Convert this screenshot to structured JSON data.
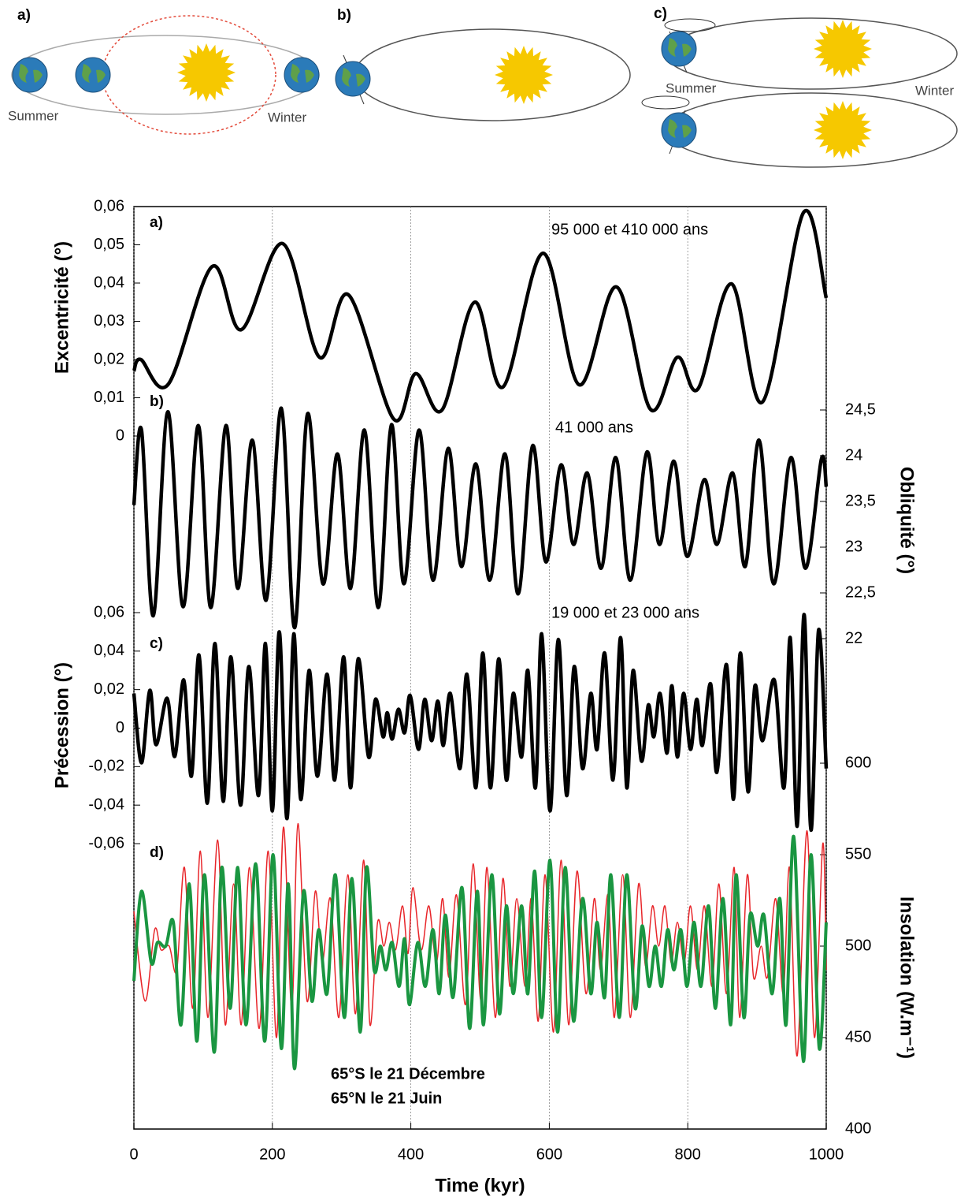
{
  "diagram": {
    "panels": [
      {
        "label": "a)",
        "summer": "Summer",
        "winter": "Winter"
      },
      {
        "label": "b)"
      },
      {
        "label": "c)",
        "summer": "Summer",
        "winter": "Winter"
      }
    ]
  },
  "chart_data": [
    {
      "type": "line",
      "panel_label": "a)",
      "annotation": "95 000 et 410 000 ans",
      "y_label": "Excentricité (°)",
      "y_axis_side": "left",
      "xlim": [
        0,
        1000
      ],
      "ylim": [
        0,
        0.06
      ],
      "yticks": [
        0,
        {
          "value": 0.01,
          "label": "0,01"
        },
        {
          "value": 0.02,
          "label": "0,02"
        },
        {
          "value": 0.03,
          "label": "0,03"
        },
        {
          "value": 0.04,
          "label": "0,04"
        },
        {
          "value": 0.05,
          "label": "0,05"
        },
        {
          "value": 0.06,
          "label": "0,06"
        }
      ],
      "series": [
        {
          "color": "#000000",
          "x": [
            0,
            10,
            50,
            113,
            155,
            215,
            268,
            310,
            375,
            407,
            445,
            492,
            533,
            591,
            643,
            697,
            746,
            785,
            815,
            863,
            908,
            967,
            1000
          ],
          "values": [
            0.017,
            0.02,
            0.0136,
            0.0443,
            0.0278,
            0.0503,
            0.0206,
            0.0369,
            0.0045,
            0.0163,
            0.0068,
            0.035,
            0.0128,
            0.0478,
            0.0134,
            0.039,
            0.007,
            0.0206,
            0.0124,
            0.0398,
            0.0089,
            0.0584,
            0.0361
          ]
        }
      ]
    },
    {
      "type": "line",
      "panel_label": "b)",
      "annotation": "41 000 ans",
      "y_label": "Obliquité (°)",
      "y_axis_side": "right",
      "xlim": [
        0,
        1000
      ],
      "ylim": [
        22,
        24.5
      ],
      "yticks": [
        22,
        {
          "value": 22.5,
          "label": "22,5"
        },
        23,
        {
          "value": 23.5,
          "label": "23,5"
        },
        24,
        {
          "value": 24.5,
          "label": "24,5"
        }
      ],
      "series": [
        {
          "color": "#000000",
          "x": [
            0,
            11,
            28,
            49,
            71,
            93,
            111,
            133,
            150,
            171,
            191,
            213,
            232,
            251,
            273,
            294,
            313,
            333,
            353,
            372,
            390,
            412,
            432,
            454,
            473,
            494,
            514,
            536,
            555,
            576,
            595,
            617,
            635,
            655,
            675,
            696,
            717,
            741,
            759,
            780,
            799,
            824,
            842,
            865,
            883,
            903,
            924,
            949,
            970,
            993,
            1000
          ],
          "values": [
            23.46,
            24.28,
            22.25,
            24.48,
            22.35,
            24.33,
            22.34,
            24.33,
            22.55,
            24.17,
            22.42,
            24.52,
            22.12,
            24.46,
            22.6,
            24.02,
            22.55,
            24.28,
            22.34,
            24.34,
            22.6,
            24.28,
            22.64,
            24.08,
            22.79,
            23.91,
            22.64,
            24.02,
            22.49,
            24.11,
            22.84,
            23.9,
            23.03,
            23.81,
            22.77,
            23.98,
            22.64,
            24.04,
            23.03,
            23.94,
            22.9,
            23.74,
            23.03,
            23.81,
            22.79,
            24.17,
            22.6,
            23.98,
            22.77,
            23.96,
            23.66
          ]
        }
      ]
    },
    {
      "type": "line",
      "panel_label": "c)",
      "annotation": "19 000 et 23 000 ans",
      "y_label": "Précession (°)",
      "y_axis_side": "left",
      "xlim": [
        0,
        1000
      ],
      "ylim": [
        -0.06,
        0.06
      ],
      "yticks": [
        {
          "value": -0.06,
          "label": "-0,06"
        },
        {
          "value": -0.04,
          "label": "-0,04"
        },
        {
          "value": -0.02,
          "label": "-0,02"
        },
        0,
        {
          "value": 0.02,
          "label": "0,02"
        },
        {
          "value": 0.04,
          "label": "0,04"
        },
        {
          "value": 0.06,
          "label": "0,06"
        }
      ],
      "series": [
        {
          "color": "#000000",
          "x": [
            0,
            11,
            23,
            32,
            48,
            59,
            72,
            83,
            94,
            106,
            117,
            129,
            140,
            154,
            166,
            180,
            190,
            200,
            210,
            221,
            231,
            241,
            253,
            265,
            279,
            290,
            303,
            313,
            324,
            339,
            349,
            360,
            366,
            373,
            382,
            391,
            399,
            411,
            420,
            430,
            439,
            447,
            457,
            471,
            481,
            494,
            504,
            515,
            527,
            538,
            548,
            560,
            569,
            580,
            589,
            601,
            613,
            625,
            636,
            648,
            660,
            669,
            680,
            692,
            703,
            712,
            721,
            733,
            743,
            751,
            760,
            770,
            777,
            785,
            794,
            804,
            813,
            821,
            833,
            842,
            856,
            866,
            876,
            887,
            897,
            908,
            925,
            939,
            948,
            958,
            968,
            978,
            989,
            1000
          ],
          "values": [
            0.018,
            -0.018,
            0.0196,
            -0.0086,
            0.0155,
            -0.0147,
            0.025,
            -0.025,
            0.038,
            -0.039,
            0.044,
            -0.038,
            0.037,
            -0.04,
            0.032,
            -0.035,
            0.044,
            -0.043,
            0.05,
            -0.047,
            0.049,
            -0.037,
            0.03,
            -0.025,
            0.028,
            -0.027,
            0.037,
            -0.031,
            0.036,
            -0.015,
            0.015,
            -0.0045,
            0.008,
            -0.0057,
            0.0098,
            -0.0024,
            0.017,
            -0.011,
            0.015,
            -0.0065,
            0.014,
            -0.009,
            0.018,
            -0.021,
            0.028,
            -0.031,
            0.039,
            -0.031,
            0.036,
            -0.027,
            0.018,
            -0.015,
            0.03,
            -0.031,
            0.049,
            -0.043,
            0.046,
            -0.035,
            0.032,
            -0.021,
            0.018,
            -0.011,
            0.039,
            -0.027,
            0.047,
            -0.031,
            0.03,
            -0.017,
            0.012,
            -0.0045,
            0.018,
            -0.013,
            0.022,
            -0.015,
            0.018,
            -0.011,
            0.015,
            -0.009,
            0.023,
            -0.023,
            0.033,
            -0.037,
            0.039,
            -0.033,
            0.022,
            -0.0065,
            0.025,
            -0.031,
            0.047,
            -0.051,
            0.059,
            -0.053,
            0.051,
            -0.021
          ]
        }
      ]
    },
    {
      "type": "line",
      "panel_label": "d)",
      "y_label": "Insolation (W.m⁻¹)",
      "y_axis_side": "right",
      "xlim": [
        0,
        1000
      ],
      "ylim": [
        400,
        600
      ],
      "yticks": [
        400,
        450,
        500,
        550,
        600
      ],
      "xticks": [
        0,
        200,
        400,
        600,
        800,
        1000
      ],
      "x_label": "Time (kyr)",
      "series": [
        {
          "name": "65°S le 21 Décembre",
          "color": "#e8262a",
          "x": [
            0,
            16,
            30,
            39,
            51,
            62,
            73,
            85,
            96,
            107,
            121,
            132,
            144,
            155,
            167,
            181,
            194,
            206,
            216,
            228,
            237,
            250,
            262,
            272,
            284,
            296,
            309,
            320,
            332,
            341,
            352,
            361,
            369,
            378,
            388,
            396,
            403,
            415,
            426,
            437,
            446,
            455,
            466,
            479,
            490,
            501,
            510,
            522,
            533,
            543,
            553,
            565,
            574,
            584,
            594,
            606,
            617,
            628,
            640,
            653,
            665,
            674,
            685,
            694,
            706,
            717,
            729,
            739,
            749,
            758,
            767,
            776,
            785,
            795,
            804,
            814,
            824,
            835,
            845,
            856,
            867,
            875,
            886,
            895,
            906,
            915,
            927,
            938,
            947,
            958,
            972,
            983,
            995,
            1000
          ],
          "values": [
            519,
            470,
            509,
            498,
            500,
            487,
            543,
            466,
            552,
            461,
            558,
            457,
            534,
            457,
            543,
            455,
            552,
            450,
            565,
            466,
            567,
            470,
            530,
            491,
            526,
            461,
            539,
            463,
            547,
            457,
            513,
            500,
            513,
            498,
            522,
            496,
            532,
            498,
            522,
            491,
            526,
            483,
            528,
            468,
            545,
            470,
            543,
            461,
            537,
            478,
            526,
            478,
            526,
            459,
            539,
            453,
            547,
            457,
            541,
            474,
            526,
            487,
            528,
            461,
            539,
            461,
            534,
            489,
            522,
            500,
            522,
            491,
            513,
            491,
            522,
            487,
            522,
            478,
            534,
            474,
            543,
            461,
            539,
            483,
            500,
            483,
            526,
            474,
            543,
            440,
            563,
            450,
            556,
            487
          ]
        },
        {
          "name": "65°N le 21 Juin",
          "color": "#1a9641",
          "x": [
            0,
            11,
            25,
            34,
            46,
            57,
            68,
            80,
            91,
            102,
            116,
            127,
            139,
            150,
            162,
            176,
            189,
            201,
            213,
            223,
            232,
            245,
            257,
            267,
            279,
            291,
            304,
            315,
            327,
            336,
            347,
            356,
            364,
            373,
            383,
            391,
            398,
            410,
            421,
            432,
            441,
            450,
            461,
            474,
            485,
            496,
            505,
            517,
            528,
            538,
            548,
            560,
            569,
            579,
            589,
            601,
            612,
            623,
            635,
            648,
            660,
            669,
            680,
            689,
            701,
            712,
            724,
            734,
            744,
            753,
            762,
            771,
            780,
            790,
            799,
            809,
            819,
            830,
            840,
            851,
            862,
            870,
            881,
            890,
            901,
            910,
            922,
            933,
            942,
            953,
            967,
            978,
            990,
            1000
          ],
          "values": [
            481,
            530,
            491,
            502,
            500,
            513,
            457,
            534,
            448,
            539,
            442,
            543,
            466,
            543,
            457,
            545,
            448,
            550,
            444,
            534,
            433,
            530,
            470,
            509,
            474,
            539,
            461,
            537,
            453,
            543,
            487,
            500,
            487,
            502,
            478,
            504,
            468,
            502,
            478,
            509,
            474,
            517,
            472,
            532,
            455,
            530,
            457,
            539,
            463,
            522,
            474,
            522,
            474,
            541,
            461,
            547,
            453,
            543,
            459,
            526,
            474,
            513,
            472,
            539,
            461,
            539,
            466,
            511,
            478,
            500,
            478,
            509,
            487,
            509,
            478,
            513,
            478,
            522,
            466,
            526,
            457,
            539,
            461,
            517,
            500,
            517,
            474,
            526,
            457,
            560,
            437,
            550,
            444,
            513
          ]
        }
      ]
    }
  ]
}
